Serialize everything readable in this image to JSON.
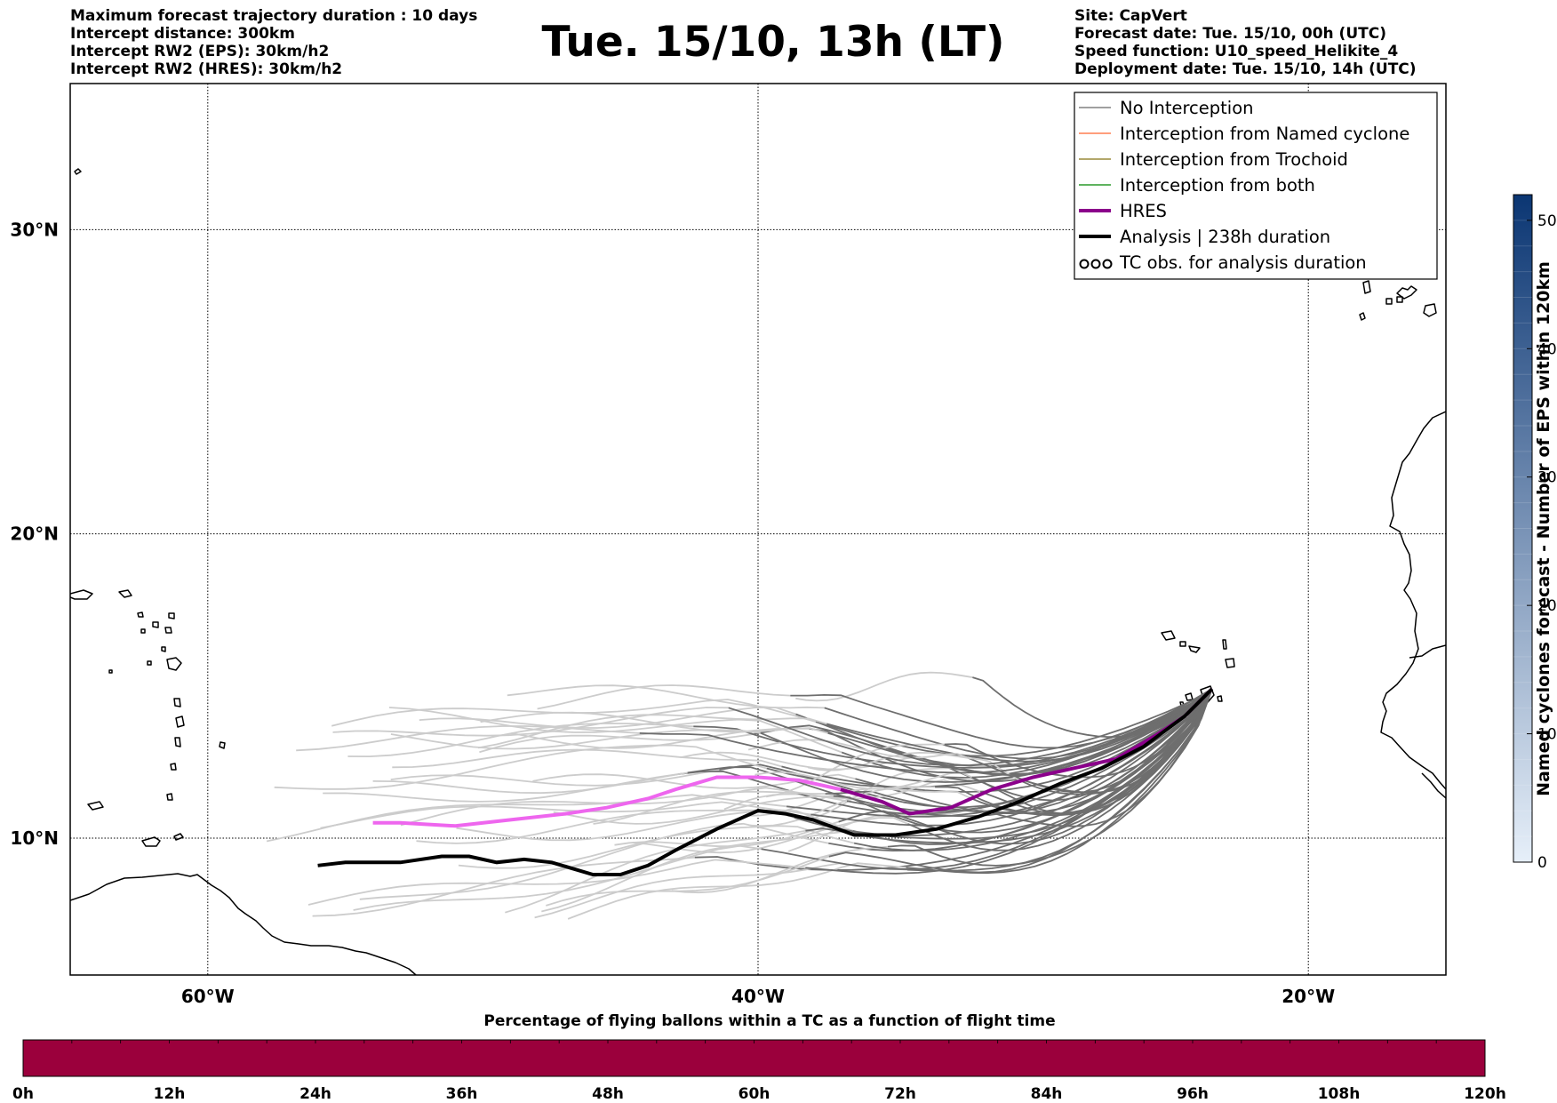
{
  "title": "Tue. 15/10, 13h (LT)",
  "info_left": [
    "Maximum forecast trajectory duration : 10 days",
    "Intercept distance: 300km",
    "Intercept RW2 (EPS):  30km/h2",
    "Intercept RW2 (HRES): 30km/h2"
  ],
  "info_right": [
    "Site: CapVert",
    "Forecast date: Tue. 15/10, 00h (UTC)",
    "Speed function: U10_speed_Helikite_4",
    "Deployment date: Tue. 15/10, 14h (UTC)"
  ],
  "map": {
    "lon_range": [
      -65,
      -15
    ],
    "lat_range": [
      5.5,
      34.8
    ],
    "lon_ticks": [
      {
        "lon": -60,
        "label": "60°W"
      },
      {
        "lon": -40,
        "label": "40°W"
      },
      {
        "lon": -20,
        "label": "20°W"
      }
    ],
    "lat_ticks": [
      {
        "lat": 30,
        "label": "30°N"
      },
      {
        "lat": 20,
        "label": "20°N"
      },
      {
        "lat": 10,
        "label": "10°N"
      }
    ],
    "launch_site": {
      "lon": -23.5,
      "lat": 14.9
    }
  },
  "legend": [
    {
      "label": "No Interception",
      "color": "#808080",
      "style": "thin"
    },
    {
      "label": "Interception from Named cyclone",
      "color": "#ff7f50",
      "style": "thin"
    },
    {
      "label": "Interception from Trochoid",
      "color": "#9a8a3a",
      "style": "thin"
    },
    {
      "label": "Interception from both",
      "color": "#2a9a2a",
      "style": "thin"
    },
    {
      "label": "HRES",
      "color": "#8b008b",
      "style": "thick"
    },
    {
      "label": "Analysis | 238h duration",
      "color": "#000000",
      "style": "thick"
    },
    {
      "label": "TC obs. for analysis duration",
      "color": "#000000",
      "style": "symbol"
    }
  ],
  "hres_track": [
    [
      -23.5,
      14.9
    ],
    [
      -24.5,
      14.0
    ],
    [
      -25.5,
      13.4
    ],
    [
      -27,
      12.6
    ],
    [
      -28.5,
      12.3
    ],
    [
      -30,
      12.0
    ],
    [
      -31.5,
      11.6
    ],
    [
      -33,
      11.0
    ],
    [
      -34.5,
      10.8
    ],
    [
      -35.5,
      11.2
    ],
    [
      -37,
      11.6
    ],
    [
      -38.5,
      11.9
    ],
    [
      -40,
      12.0
    ],
    [
      -41.5,
      12.0
    ],
    [
      -43,
      11.6
    ],
    [
      -44,
      11.3
    ],
    [
      -45.5,
      11.0
    ],
    [
      -47,
      10.8
    ],
    [
      -49,
      10.6
    ],
    [
      -51,
      10.4
    ],
    [
      -53,
      10.5
    ],
    [
      -54,
      10.5
    ]
  ],
  "hres_forecast_split_lon": -37.5,
  "analysis_track": [
    [
      -23.5,
      14.9
    ],
    [
      -24.5,
      14.0
    ],
    [
      -26,
      13.0
    ],
    [
      -27.5,
      12.3
    ],
    [
      -29,
      11.8
    ],
    [
      -30.5,
      11.2
    ],
    [
      -32,
      10.7
    ],
    [
      -33.5,
      10.3
    ],
    [
      -35,
      10.1
    ],
    [
      -36.5,
      10.1
    ],
    [
      -38,
      10.6
    ],
    [
      -39,
      10.8
    ],
    [
      -40,
      10.9
    ],
    [
      -41.5,
      10.3
    ],
    [
      -43,
      9.6
    ],
    [
      -44,
      9.1
    ],
    [
      -45,
      8.8
    ],
    [
      -46,
      8.8
    ],
    [
      -47.5,
      9.2
    ],
    [
      -48.5,
      9.3
    ],
    [
      -49.5,
      9.2
    ],
    [
      -50.5,
      9.4
    ],
    [
      -51.5,
      9.4
    ],
    [
      -53,
      9.2
    ],
    [
      -55,
      9.2
    ],
    [
      -56,
      9.1
    ]
  ],
  "colorbar_right": {
    "title": "Named cyclones forecast - Number of EPS within 120km",
    "min": 0,
    "max": 52,
    "ticks": [
      0,
      10,
      20,
      30,
      40,
      50
    ],
    "color_low": "#e6eff9",
    "color_high": "#0b3673"
  },
  "colorbar_bottom": {
    "title": "Percentage of flying ballons within a TC as a function of flight time",
    "fill_color": "#9b003c",
    "ticks": [
      "0h",
      "12h",
      "24h",
      "36h",
      "48h",
      "60h",
      "72h",
      "84h",
      "96h",
      "108h",
      "120h"
    ]
  }
}
